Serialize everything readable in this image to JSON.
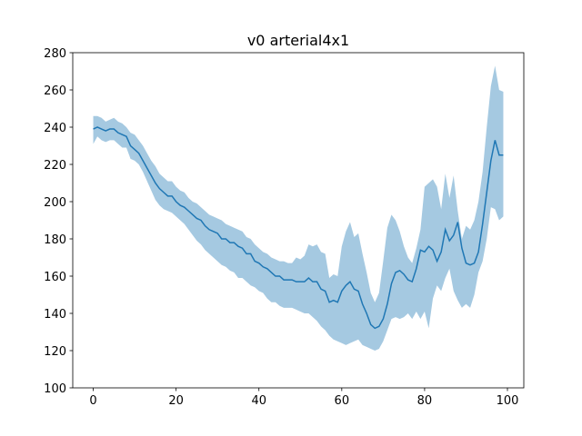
{
  "chart_data": {
    "type": "band-line",
    "title": "v0 arterial4x1",
    "color": "#1f77b4",
    "x": [
      0,
      1,
      2,
      3,
      4,
      5,
      6,
      7,
      8,
      9,
      10,
      11,
      12,
      13,
      14,
      15,
      16,
      17,
      18,
      19,
      20,
      21,
      22,
      23,
      24,
      25,
      26,
      27,
      28,
      29,
      30,
      31,
      32,
      33,
      34,
      35,
      36,
      37,
      38,
      39,
      40,
      41,
      42,
      43,
      44,
      45,
      46,
      47,
      48,
      49,
      50,
      51,
      52,
      53,
      54,
      55,
      56,
      57,
      58,
      59,
      60,
      61,
      62,
      63,
      64,
      65,
      66,
      67,
      68,
      69,
      70,
      71,
      72,
      73,
      74,
      75,
      76,
      77,
      78,
      79,
      80,
      81,
      82,
      83,
      84,
      85,
      86,
      87,
      88,
      89,
      90,
      91,
      92,
      93,
      94,
      95,
      96,
      97,
      98,
      99
    ],
    "mean": [
      239,
      240,
      239,
      238,
      239,
      239,
      237,
      236,
      235,
      230,
      228,
      226,
      222,
      218,
      214,
      210,
      207,
      205,
      203,
      203,
      200,
      198,
      197,
      195,
      193,
      191,
      190,
      187,
      185,
      184,
      183,
      180,
      180,
      178,
      178,
      176,
      175,
      172,
      172,
      168,
      167,
      165,
      164,
      162,
      160,
      160,
      158,
      158,
      158,
      157,
      157,
      157,
      159,
      157,
      157,
      153,
      152,
      146,
      147,
      146,
      152,
      155,
      157,
      153,
      152,
      145,
      140,
      134,
      132,
      133,
      137,
      145,
      156,
      162,
      163,
      161,
      158,
      157,
      164,
      174,
      173,
      176,
      174,
      168,
      173,
      185,
      179,
      182,
      189,
      175,
      167,
      166,
      167,
      173,
      188,
      205,
      222,
      233,
      225,
      225
    ],
    "upper": [
      246,
      246,
      245,
      243,
      244,
      245,
      243,
      242,
      240,
      237,
      236,
      233,
      230,
      226,
      222,
      219,
      215,
      213,
      211,
      211,
      208,
      206,
      205,
      202,
      200,
      199,
      197,
      195,
      193,
      192,
      191,
      190,
      188,
      187,
      186,
      185,
      184,
      181,
      180,
      177,
      175,
      173,
      172,
      170,
      169,
      168,
      168,
      167,
      167,
      170,
      169,
      171,
      177,
      176,
      177,
      173,
      172,
      159,
      161,
      160,
      176,
      184,
      189,
      181,
      183,
      172,
      162,
      151,
      146,
      151,
      168,
      186,
      193,
      190,
      184,
      176,
      170,
      167,
      175,
      185,
      208,
      210,
      212,
      208,
      196,
      215,
      202,
      214,
      195,
      180,
      187,
      185,
      190,
      200,
      216,
      240,
      262,
      273,
      260,
      259
    ],
    "lower": [
      231,
      235,
      233,
      232,
      233,
      233,
      231,
      229,
      229,
      223,
      222,
      220,
      216,
      211,
      206,
      201,
      198,
      196,
      195,
      194,
      192,
      190,
      188,
      185,
      182,
      179,
      177,
      174,
      172,
      170,
      168,
      166,
      165,
      163,
      162,
      159,
      159,
      157,
      155,
      154,
      152,
      151,
      148,
      146,
      146,
      144,
      143,
      143,
      143,
      142,
      141,
      140,
      140,
      138,
      136,
      133,
      131,
      128,
      126,
      125,
      124,
      123,
      124,
      125,
      126,
      123,
      122,
      121,
      120,
      121,
      125,
      131,
      137,
      138,
      137,
      138,
      140,
      137,
      141,
      137,
      141,
      132,
      148,
      155,
      152,
      159,
      164,
      152,
      147,
      143,
      145,
      143,
      150,
      162,
      168,
      180,
      197,
      196,
      190,
      192
    ],
    "xlim": [
      -4.95,
      103.95
    ],
    "ylim": [
      100,
      280
    ],
    "xticks": [
      0,
      20,
      40,
      60,
      80,
      100
    ],
    "yticks": [
      100,
      120,
      140,
      160,
      180,
      200,
      220,
      240,
      260,
      280
    ]
  }
}
